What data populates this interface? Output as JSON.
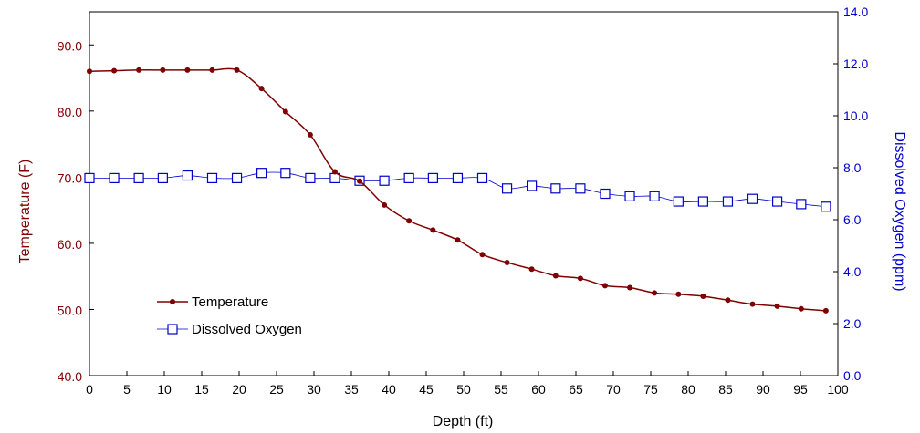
{
  "chart_data": {
    "type": "line",
    "xlabel": "Depth (ft)",
    "ylabel_left": "Temperature (F)",
    "ylabel_right": "Dissolved Oxygen (ppm)",
    "xlim": [
      0,
      100
    ],
    "ylim_left": [
      40,
      95
    ],
    "ylim_right": [
      0,
      14
    ],
    "x_ticks": [
      "0",
      "5",
      "10",
      "15",
      "20",
      "25",
      "30",
      "35",
      "40",
      "45",
      "50",
      "55",
      "60",
      "65",
      "70",
      "75",
      "80",
      "85",
      "90",
      "95",
      "100"
    ],
    "y_left_ticks": [
      "40.0",
      "50.0",
      "60.0",
      "70.0",
      "80.0",
      "90.0"
    ],
    "y_right_ticks": [
      "0.0",
      "2.0",
      "4.0",
      "6.0",
      "8.0",
      "10.0",
      "12.0",
      "14.0"
    ],
    "grid": false,
    "legend_position": "bottom-left",
    "colors": {
      "temperature": "#7f0000",
      "dissolved_oxygen": "#0000cc",
      "left_axis_text": "#7f0000",
      "right_axis_text": "#0000cc"
    },
    "series": [
      {
        "name": "Temperature",
        "axis": "left",
        "marker": "circle",
        "x": [
          0,
          3.3,
          6.6,
          9.8,
          13.1,
          16.4,
          19.7,
          23.0,
          26.2,
          29.5,
          32.8,
          36.1,
          39.4,
          42.7,
          45.9,
          49.2,
          52.5,
          55.8,
          59.1,
          62.3,
          65.6,
          68.9,
          72.2,
          75.5,
          78.7,
          82.0,
          85.3,
          88.6,
          91.9,
          95.1,
          98.4
        ],
        "values": [
          86.0,
          86.1,
          86.2,
          86.2,
          86.2,
          86.2,
          86.2,
          83.4,
          79.9,
          76.4,
          70.8,
          69.4,
          65.8,
          63.4,
          62.0,
          60.5,
          58.3,
          57.1,
          56.1,
          55.1,
          54.7,
          53.6,
          53.3,
          52.5,
          52.3,
          52.0,
          51.4,
          50.8,
          50.5,
          50.1,
          49.8
        ]
      },
      {
        "name": "Dissolved Oxygen",
        "axis": "right",
        "marker": "open-square",
        "x": [
          0,
          3.3,
          6.6,
          9.8,
          13.1,
          16.4,
          19.7,
          23.0,
          26.2,
          29.5,
          32.8,
          36.1,
          39.4,
          42.7,
          45.9,
          49.2,
          52.5,
          55.8,
          59.1,
          62.3,
          65.6,
          68.9,
          72.2,
          75.5,
          78.7,
          82.0,
          85.3,
          88.6,
          91.9,
          95.1,
          98.4
        ],
        "values": [
          7.6,
          7.6,
          7.6,
          7.6,
          7.7,
          7.6,
          7.6,
          7.8,
          7.8,
          7.6,
          7.6,
          7.5,
          7.5,
          7.6,
          7.6,
          7.6,
          7.6,
          7.2,
          7.3,
          7.2,
          7.2,
          7.0,
          6.9,
          6.9,
          6.7,
          6.7,
          6.7,
          6.8,
          6.7,
          6.6,
          6.5
        ]
      }
    ]
  }
}
